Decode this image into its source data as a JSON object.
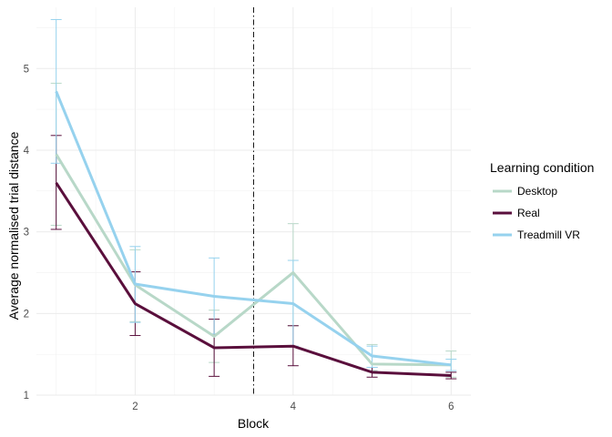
{
  "chart_data": {
    "type": "line",
    "xlabel": "Block",
    "ylabel": "Average normalised trial distance",
    "x": [
      1,
      2,
      3,
      4,
      5,
      6
    ],
    "x_ticks": [
      2,
      4,
      6
    ],
    "y_ticks": [
      1,
      2,
      3,
      4,
      5
    ],
    "xlim": [
      0.75,
      6.25
    ],
    "ylim": [
      1.0,
      5.75
    ],
    "grid": true,
    "vertical_reference_line": {
      "x": 3.5,
      "style": "dashdot"
    },
    "legend": {
      "title": "Learning condition",
      "position": "right"
    },
    "series": [
      {
        "name": "Desktop",
        "color": "#b8d8c8",
        "values": [
          3.95,
          2.35,
          1.72,
          2.5,
          1.38,
          1.37
        ],
        "lower": [
          3.08,
          1.9,
          1.4,
          1.85,
          1.3,
          1.22
        ],
        "upper": [
          4.82,
          2.78,
          2.04,
          3.1,
          1.62,
          1.54
        ]
      },
      {
        "name": "Real",
        "color": "#5a0f3c",
        "values": [
          3.6,
          2.12,
          1.58,
          1.6,
          1.28,
          1.24
        ],
        "lower": [
          3.03,
          1.73,
          1.23,
          1.36,
          1.22,
          1.2
        ],
        "upper": [
          4.18,
          2.51,
          1.93,
          1.85,
          1.34,
          1.28
        ]
      },
      {
        "name": "Treadmill VR",
        "color": "#96d2ee",
        "values": [
          4.72,
          2.36,
          2.21,
          2.12,
          1.48,
          1.37
        ],
        "lower": [
          3.84,
          1.89,
          1.75,
          1.6,
          1.34,
          1.3
        ],
        "upper": [
          5.6,
          2.82,
          2.68,
          2.65,
          1.6,
          1.44
        ]
      }
    ]
  }
}
